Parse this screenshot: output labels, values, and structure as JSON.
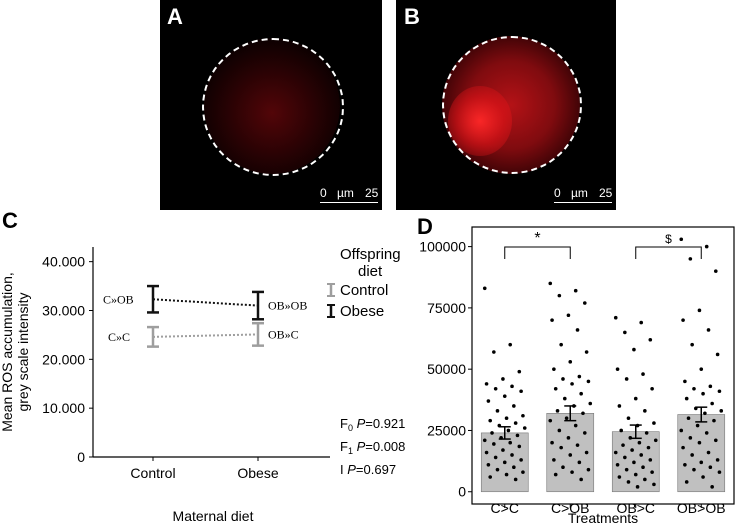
{
  "panels": {
    "a": {
      "letter": "A",
      "scale_zero": "0",
      "scale_unit": "µm",
      "scale_max": "25"
    },
    "b": {
      "letter": "B",
      "scale_zero": "0",
      "scale_unit": "µm",
      "scale_max": "25"
    },
    "c": {
      "letter": "C"
    },
    "d": {
      "letter": "D"
    }
  },
  "colors": {
    "control": "#9e9e9e",
    "obese": "#111111",
    "bar_fill": "#c0c0c0",
    "fluorescence": "#e8141a"
  },
  "chart_data": [
    {
      "type": "line",
      "xlabel": "Maternal diet",
      "ylabel": "Mean ROS accumulation, grey scale intensity",
      "categories": [
        "Control",
        "Obese"
      ],
      "y_ticks": [
        "0",
        "10.000",
        "20.000",
        "30.000",
        "40.000"
      ],
      "ylim": [
        0,
        43000
      ],
      "legend": {
        "title": "Offspring diet",
        "placement": "top-right"
      },
      "series": [
        {
          "name": "Control",
          "values": [
            24600,
            25100
          ],
          "error": [
            2000,
            2300
          ],
          "point_labels": [
            "C»C",
            "OB»C"
          ]
        },
        {
          "name": "Obese",
          "values": [
            32300,
            31000
          ],
          "error": [
            2700,
            2800
          ],
          "point_labels": [
            "C»OB",
            "OB»OB"
          ]
        }
      ],
      "stats": [
        {
          "term": "F",
          "sub": "0",
          "p_label": "P",
          "value": "=0.921"
        },
        {
          "term": "F",
          "sub": "1",
          "p_label": "P",
          "value": "=0.008"
        },
        {
          "term": "I",
          "sub": "",
          "p_label": "P",
          "value": "=0.697"
        }
      ]
    },
    {
      "type": "bar",
      "xlabel": "Treatments",
      "ylabel": "",
      "categories": [
        "C>C",
        "C>OB",
        "OB>C",
        "OB>OB"
      ],
      "values": [
        24000,
        32000,
        24500,
        31500
      ],
      "error": [
        2500,
        3000,
        2700,
        3000
      ],
      "y_ticks": [
        "0",
        "25000",
        "50000",
        "75000",
        "100000"
      ],
      "ylim": [
        -5000,
        108000
      ],
      "annotations": [
        {
          "from": "C>C",
          "to": "C>OB",
          "label": "*"
        },
        {
          "from": "OB>C",
          "to": "OB>OB",
          "label": "$"
        }
      ],
      "points": [
        [
          83000,
          60000,
          57000,
          49000,
          46000,
          44000,
          43000,
          42000,
          41000,
          39000,
          37000,
          35000,
          33000,
          31000,
          30000,
          29000,
          28000,
          27000,
          26000,
          25000,
          24000,
          23000,
          22000,
          21000,
          20000,
          19500,
          18500,
          17000,
          16000,
          15000,
          14000,
          13000,
          12000,
          11000,
          10000,
          9000,
          8000,
          7000,
          6000,
          5000
        ],
        [
          85000,
          82000,
          80000,
          77000,
          72000,
          70000,
          66000,
          60000,
          57000,
          53000,
          50000,
          47000,
          46000,
          45000,
          44000,
          42000,
          40000,
          38000,
          36000,
          35000,
          33000,
          32000,
          30000,
          29000,
          27000,
          25000,
          24000,
          22000,
          20000,
          19000,
          18000,
          16000,
          15000,
          13000,
          12000,
          10000,
          9000,
          8000,
          7000,
          5000
        ],
        [
          71000,
          69000,
          65000,
          62000,
          58000,
          50000,
          48000,
          46000,
          42000,
          38000,
          35000,
          33000,
          30000,
          28000,
          27000,
          25000,
          24000,
          22000,
          21000,
          20000,
          19000,
          18000,
          17000,
          16000,
          15000,
          14000,
          13000,
          12000,
          11000,
          10000,
          9000,
          8000,
          7000,
          6000,
          5000,
          4000,
          3000,
          2000
        ],
        [
          103000,
          100000,
          95000,
          90000,
          74000,
          70000,
          66000,
          60000,
          56000,
          50000,
          45000,
          43000,
          42000,
          41000,
          40000,
          38000,
          36000,
          34000,
          33000,
          32000,
          30000,
          29000,
          27000,
          25000,
          24000,
          22000,
          21000,
          20000,
          18000,
          16000,
          15000,
          13000,
          12000,
          11000,
          10000,
          9000,
          8000,
          6000,
          4000,
          2000
        ]
      ]
    }
  ]
}
